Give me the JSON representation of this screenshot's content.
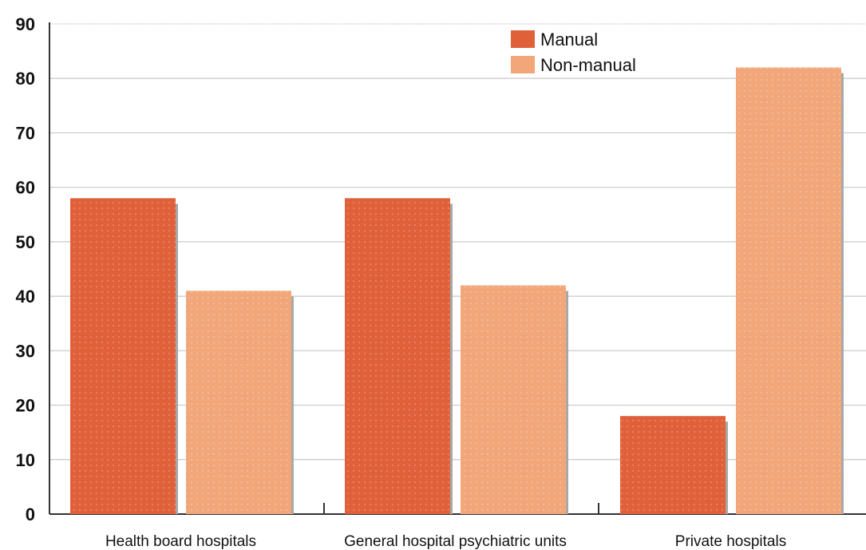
{
  "chart_data": {
    "type": "bar",
    "categories": [
      "Health board hospitals",
      "General hospital psychiatric units",
      "Private hospitals"
    ],
    "series": [
      {
        "name": "Manual",
        "values": [
          58,
          58,
          18
        ]
      },
      {
        "name": "Non-manual",
        "values": [
          41,
          42,
          82
        ]
      }
    ],
    "ylim": [
      0,
      90
    ],
    "yticks": [
      "0",
      "10",
      "20",
      "30",
      "40",
      "50",
      "60",
      "70",
      "80",
      "90"
    ],
    "grid": true,
    "legend": "top-right",
    "colors": {
      "Manual": "#e0603a",
      "Non-manual": "#f2a77a"
    }
  }
}
